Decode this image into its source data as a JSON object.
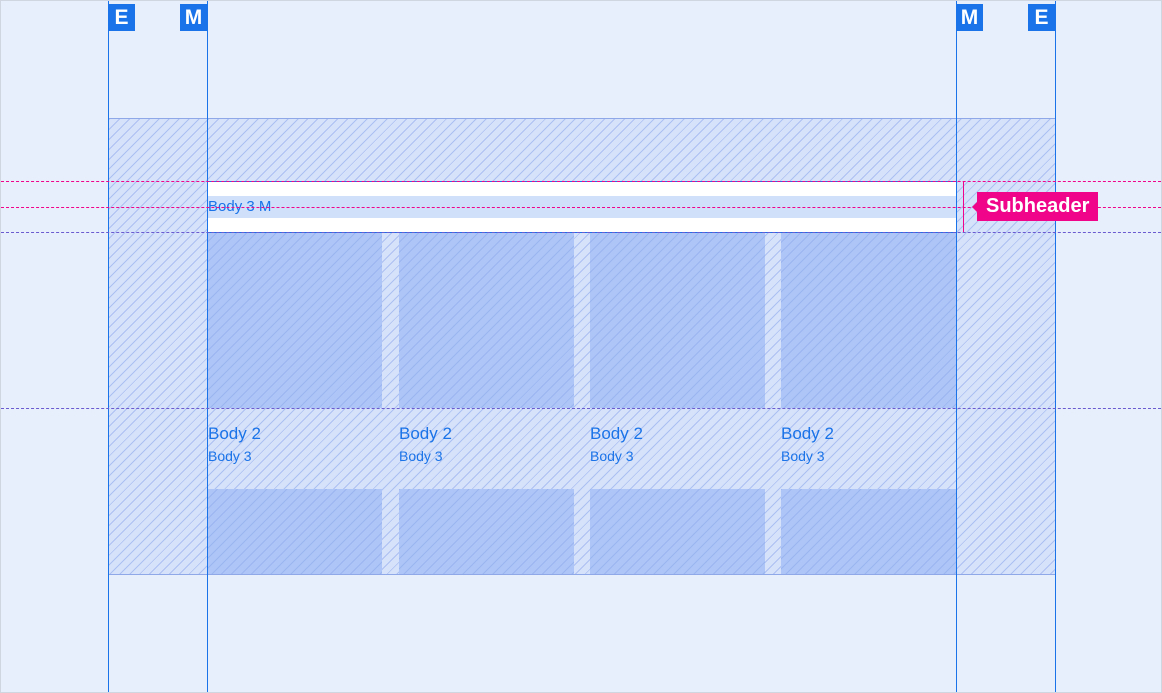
{
  "markers": {
    "edge": "E",
    "margin": "M"
  },
  "subheader": {
    "text": "Body 3 M",
    "label": "Subheader"
  },
  "cards": [
    {
      "title": "Body 2",
      "subtitle": "Body 3"
    },
    {
      "title": "Body 2",
      "subtitle": "Body 3"
    },
    {
      "title": "Body 2",
      "subtitle": "Body 3"
    },
    {
      "title": "Body 2",
      "subtitle": "Body 3"
    }
  ],
  "colors": {
    "accent": "#1a73e8",
    "annotation": "#f0058a",
    "background": "#e8effc"
  }
}
